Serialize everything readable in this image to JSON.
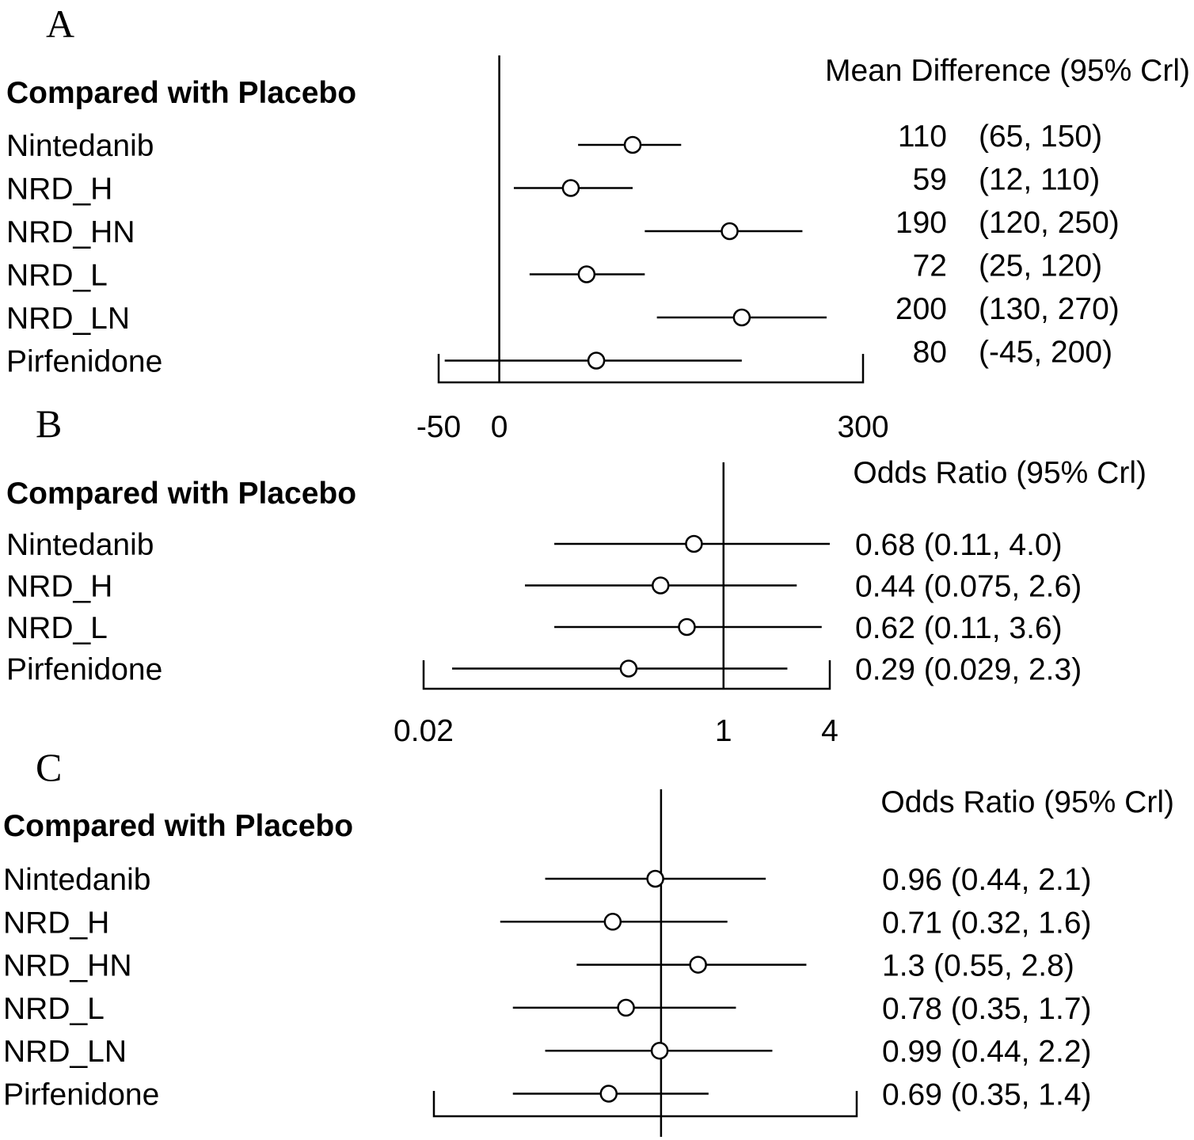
{
  "chart_data": [
    {
      "type": "forest",
      "panel": "A",
      "heading": "Compared with Placebo",
      "effect_title": "Mean Difference (95% Crl)",
      "scale": "linear",
      "reference": 0,
      "axis": {
        "min": -50,
        "max": 300,
        "ticks": [
          "-50",
          "0",
          "300"
        ]
      },
      "rows": [
        {
          "label": "Nintedanib",
          "est": 110,
          "lo": 65,
          "hi": 150,
          "est_text": "110",
          "ci_text": "(65, 150)"
        },
        {
          "label": "NRD_H",
          "est": 59,
          "lo": 12,
          "hi": 110,
          "est_text": "59",
          "ci_text": "(12, 110)"
        },
        {
          "label": "NRD_HN",
          "est": 190,
          "lo": 120,
          "hi": 250,
          "est_text": "190",
          "ci_text": "(120, 250)"
        },
        {
          "label": "NRD_L",
          "est": 72,
          "lo": 25,
          "hi": 120,
          "est_text": "72",
          "ci_text": "(25, 120)"
        },
        {
          "label": "NRD_LN",
          "est": 200,
          "lo": 130,
          "hi": 270,
          "est_text": "200",
          "ci_text": "(130, 270)"
        },
        {
          "label": "Pirfenidone",
          "est": 80,
          "lo": -45,
          "hi": 200,
          "est_text": "80",
          "ci_text": "(-45, 200)"
        }
      ]
    },
    {
      "type": "forest",
      "panel": "B",
      "heading": "Compared with Placebo",
      "effect_title": "Odds Ratio (95% Crl)",
      "scale": "log",
      "reference": 1,
      "axis": {
        "min": 0.02,
        "max": 4,
        "ticks": [
          "0.02",
          "1",
          "4"
        ]
      },
      "rows": [
        {
          "label": "Nintedanib",
          "est": 0.68,
          "lo": 0.11,
          "hi": 4.0,
          "text": "0.68 (0.11, 4.0)"
        },
        {
          "label": "NRD_H",
          "est": 0.44,
          "lo": 0.075,
          "hi": 2.6,
          "text": "0.44 (0.075, 2.6)"
        },
        {
          "label": "NRD_L",
          "est": 0.62,
          "lo": 0.11,
          "hi": 3.6,
          "text": "0.62 (0.11, 3.6)"
        },
        {
          "label": "Pirfenidone",
          "est": 0.29,
          "lo": 0.029,
          "hi": 2.3,
          "text": "0.29 (0.029, 2.3)"
        }
      ]
    },
    {
      "type": "forest",
      "panel": "C",
      "heading": "Compared with Placebo",
      "effect_title": "Odds Ratio (95% Crl)",
      "scale": "log",
      "reference": 1,
      "axis": {
        "min": 0.2,
        "max": 4,
        "ticks": []
      },
      "rows": [
        {
          "label": "Nintedanib",
          "est": 0.96,
          "lo": 0.44,
          "hi": 2.1,
          "text": "0.96 (0.44, 2.1)"
        },
        {
          "label": "NRD_H",
          "est": 0.71,
          "lo": 0.32,
          "hi": 1.6,
          "text": "0.71 (0.32, 1.6)"
        },
        {
          "label": "NRD_HN",
          "est": 1.3,
          "lo": 0.55,
          "hi": 2.8,
          "text": "1.3 (0.55, 2.8)"
        },
        {
          "label": "NRD_L",
          "est": 0.78,
          "lo": 0.35,
          "hi": 1.7,
          "text": "0.78 (0.35, 1.7)"
        },
        {
          "label": "NRD_LN",
          "est": 0.99,
          "lo": 0.44,
          "hi": 2.2,
          "text": "0.99 (0.44, 2.2)"
        },
        {
          "label": "Pirfenidone",
          "est": 0.69,
          "lo": 0.35,
          "hi": 1.4,
          "text": "0.69 (0.35, 1.4)"
        }
      ]
    }
  ]
}
